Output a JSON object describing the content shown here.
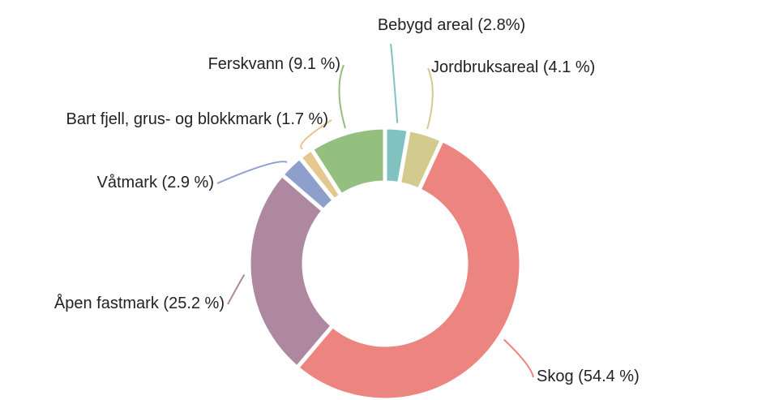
{
  "chart_data": {
    "type": "donut",
    "categories": [
      "Bebygd areal",
      "Jordbruksareal",
      "Skog",
      "Åpen fastmark",
      "Våtmark",
      "Bart fjell, grus- og blokkmark",
      "Ferskvann"
    ],
    "values": [
      2.8,
      4.1,
      54.4,
      25.2,
      2.9,
      1.7,
      9.1
    ],
    "value_labels": [
      "(2.8%)",
      "(4.1 %)",
      "(54.4 %)",
      "(25.2 %)",
      "(2.9 %)",
      "(1.7 %)",
      "(9.1 %)"
    ],
    "colors": [
      "#7fc2c0",
      "#d3cb8d",
      "#ec8580",
      "#ae88a0",
      "#8d9fca",
      "#e5c88f",
      "#93bf7f"
    ]
  }
}
